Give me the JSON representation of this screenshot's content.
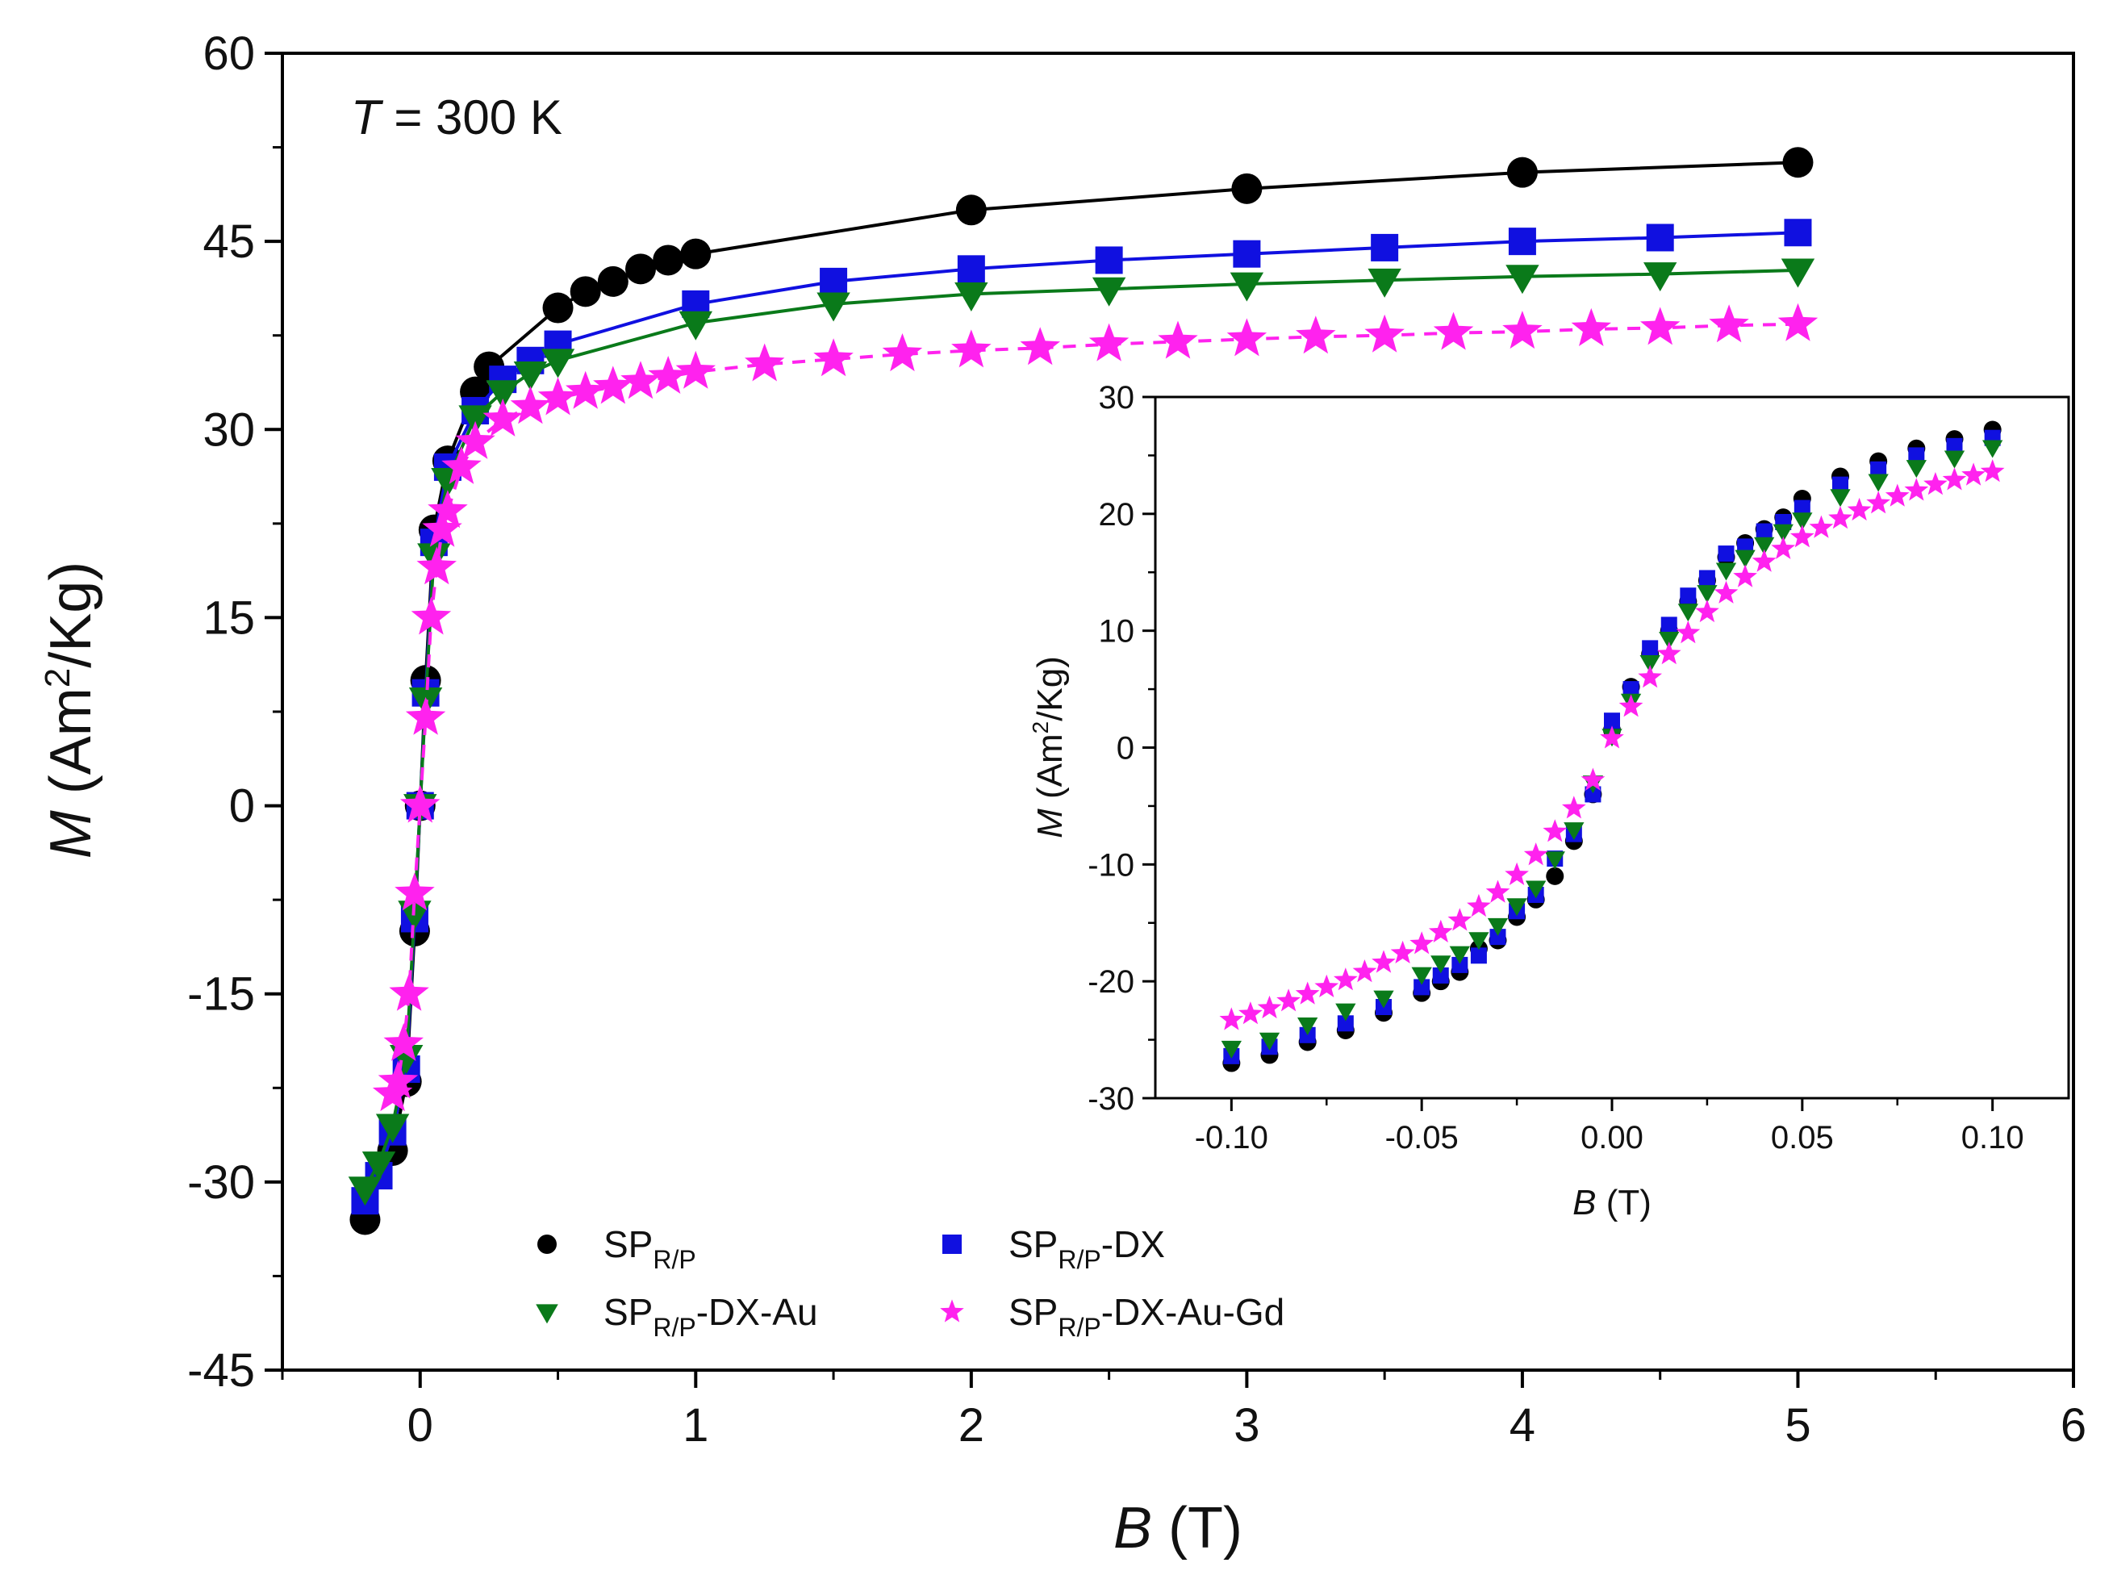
{
  "chart_data": [
    {
      "type": "line",
      "name": "main",
      "xlabel": "B",
      "xunit": "(T)",
      "ylabel": "M",
      "yunit_before_sup": "(Am",
      "yunit_sup": "2",
      "yunit_after_sup": "/Kg)",
      "xlim": [
        -0.5,
        6
      ],
      "ylim": [
        -45,
        60
      ],
      "xticks": [
        0,
        1,
        2,
        3,
        4,
        5,
        6
      ],
      "yticks": [
        -45,
        -30,
        -15,
        0,
        15,
        30,
        45,
        60
      ],
      "annotation": {
        "italic": "T",
        "rest": " = 300 K"
      },
      "grid": false,
      "legend_position": "bottom-center",
      "series": [
        {
          "name": "SP_R/P",
          "color": "#000000",
          "marker": "circle",
          "line": "solid",
          "x": [
            -0.2,
            -0.1,
            -0.05,
            -0.02,
            0,
            0.02,
            0.05,
            0.1,
            0.2,
            0.25,
            0.5,
            0.6,
            0.7,
            0.8,
            0.9,
            1.0,
            2.0,
            3.0,
            4.0,
            5.0
          ],
          "y": [
            -33,
            -27.5,
            -22,
            -10,
            0,
            10,
            22,
            27.5,
            33,
            35,
            39.7,
            41,
            41.8,
            42.8,
            43.5,
            44,
            47.5,
            49.2,
            50.5,
            51.3
          ]
        },
        {
          "name": "SP_R/P-DX",
          "color": "#1010e0",
          "marker": "square",
          "line": "solid",
          "x": [
            -0.2,
            -0.15,
            -0.1,
            -0.05,
            -0.02,
            0,
            0.02,
            0.05,
            0.1,
            0.2,
            0.3,
            0.4,
            0.5,
            1.0,
            1.5,
            2.0,
            2.5,
            3.0,
            3.5,
            4.0,
            4.5,
            5.0
          ],
          "y": [
            -31.5,
            -29.5,
            -26,
            -21,
            -9,
            0,
            9,
            21,
            27,
            31.5,
            34,
            35.5,
            36.8,
            40,
            41.8,
            42.8,
            43.5,
            44,
            44.5,
            45,
            45.3,
            45.7
          ]
        },
        {
          "name": "SP_R/P-DX-Au",
          "color": "#0a7a1a",
          "marker": "triangle-down",
          "line": "solid",
          "x": [
            -0.2,
            -0.15,
            -0.1,
            -0.05,
            -0.02,
            0,
            0.02,
            0.05,
            0.1,
            0.2,
            0.3,
            0.4,
            0.5,
            1.0,
            1.5,
            2.0,
            2.5,
            3.0,
            3.5,
            4.0,
            4.5,
            5.0
          ],
          "y": [
            -30.5,
            -28.5,
            -25.5,
            -20,
            -8.5,
            0,
            8.5,
            20,
            26,
            31,
            33,
            34.5,
            35.5,
            38.5,
            40,
            40.8,
            41.2,
            41.6,
            41.9,
            42.2,
            42.4,
            42.7
          ]
        },
        {
          "name": "SP_R/P-DX-Au-Gd",
          "color": "#ff22ee",
          "marker": "star",
          "line": "dashed",
          "x": [
            -0.1,
            -0.08,
            -0.06,
            -0.04,
            -0.02,
            0,
            0.02,
            0.04,
            0.06,
            0.08,
            0.1,
            0.15,
            0.2,
            0.3,
            0.4,
            0.5,
            0.6,
            0.7,
            0.8,
            0.9,
            1.0,
            1.25,
            1.5,
            1.75,
            2.0,
            2.25,
            2.5,
            2.75,
            3.0,
            3.25,
            3.5,
            3.75,
            4.0,
            4.25,
            4.5,
            4.75,
            5.0
          ],
          "y": [
            -23,
            -22,
            -19,
            -15,
            -7,
            0,
            7,
            15,
            19,
            22,
            23.5,
            27,
            29,
            30.8,
            31.8,
            32.5,
            33,
            33.4,
            33.8,
            34.2,
            34.6,
            35.2,
            35.6,
            36,
            36.3,
            36.5,
            36.8,
            37,
            37.2,
            37.4,
            37.5,
            37.7,
            37.8,
            38,
            38.1,
            38.3,
            38.4
          ]
        }
      ]
    },
    {
      "type": "scatter",
      "name": "inset",
      "xlabel": "B",
      "xunit": "(T)",
      "ylabel": "M",
      "yunit_before_sup": "(Am",
      "yunit_sup": "2",
      "yunit_after_sup": "/Kg)",
      "xlim": [
        -0.12,
        0.12
      ],
      "ylim": [
        -30,
        30
      ],
      "xticks": [
        -0.1,
        -0.05,
        0.0,
        0.05,
        0.1
      ],
      "xtick_labels": [
        "-0.10",
        "-0.05",
        "0.00",
        "0.05",
        "0.10"
      ],
      "yticks": [
        -30,
        -20,
        -10,
        0,
        10,
        20,
        30
      ],
      "grid": false,
      "series": [
        {
          "name": "SP_R/P",
          "color": "#000000",
          "marker": "circle",
          "x": [
            -0.1,
            -0.09,
            -0.08,
            -0.07,
            -0.06,
            -0.05,
            -0.045,
            -0.04,
            -0.035,
            -0.03,
            -0.025,
            -0.02,
            -0.015,
            -0.01,
            -0.005,
            0,
            0.005,
            0.01,
            0.015,
            0.02,
            0.025,
            0.03,
            0.035,
            0.04,
            0.045,
            0.05,
            0.06,
            0.07,
            0.08,
            0.09,
            0.1
          ],
          "y": [
            -27,
            -26.3,
            -25.2,
            -24.2,
            -22.7,
            -21,
            -20,
            -19.2,
            -17.2,
            -16.5,
            -14.5,
            -13,
            -11,
            -8,
            -4,
            1.5,
            5.2,
            8,
            10,
            12.5,
            14.3,
            16.3,
            17.5,
            18.7,
            19.7,
            21.3,
            23.2,
            24.5,
            25.6,
            26.4,
            27.2
          ]
        },
        {
          "name": "SP_R/P-DX",
          "color": "#1010e0",
          "marker": "square",
          "x": [
            -0.1,
            -0.09,
            -0.08,
            -0.07,
            -0.06,
            -0.05,
            -0.045,
            -0.04,
            -0.035,
            -0.03,
            -0.025,
            -0.02,
            -0.015,
            -0.01,
            -0.005,
            0,
            0.005,
            0.01,
            0.015,
            0.02,
            0.025,
            0.03,
            0.035,
            0.04,
            0.045,
            0.05,
            0.06,
            0.07,
            0.08,
            0.09,
            0.1
          ],
          "y": [
            -26.4,
            -25.6,
            -24.6,
            -23.6,
            -22.2,
            -20.5,
            -19.5,
            -18.6,
            -17.8,
            -16.2,
            -14,
            -12.6,
            -9.5,
            -7.4,
            -4,
            2.3,
            5,
            8.5,
            10.5,
            13,
            14.5,
            16.6,
            17.2,
            18.5,
            19.3,
            20.5,
            22.5,
            23.8,
            25,
            25.8,
            26.5
          ]
        },
        {
          "name": "SP_R/P-DX-Au",
          "color": "#0a7a1a",
          "marker": "triangle-down",
          "x": [
            -0.1,
            -0.09,
            -0.08,
            -0.07,
            -0.06,
            -0.05,
            -0.045,
            -0.04,
            -0.035,
            -0.03,
            -0.025,
            -0.02,
            -0.015,
            -0.01,
            -0.005,
            0,
            0.005,
            0.01,
            0.015,
            0.02,
            0.025,
            0.03,
            0.035,
            0.04,
            0.045,
            0.05,
            0.06,
            0.07,
            0.08,
            0.09,
            0.1
          ],
          "y": [
            -25.7,
            -25,
            -23.7,
            -22.5,
            -21.4,
            -19.4,
            -18.4,
            -17.6,
            -16.4,
            -15.2,
            -13.5,
            -12,
            -9.5,
            -7,
            -3,
            1,
            4,
            7.3,
            9.3,
            11.7,
            13.3,
            15.2,
            16.3,
            17.4,
            18.5,
            19.5,
            21.5,
            22.8,
            24,
            24.8,
            25.7
          ]
        },
        {
          "name": "SP_R/P-DX-Au-Gd",
          "color": "#ff22ee",
          "marker": "star",
          "x": [
            -0.1,
            -0.095,
            -0.09,
            -0.085,
            -0.08,
            -0.075,
            -0.07,
            -0.065,
            -0.06,
            -0.055,
            -0.05,
            -0.045,
            -0.04,
            -0.035,
            -0.03,
            -0.025,
            -0.02,
            -0.015,
            -0.01,
            -0.005,
            0,
            0.005,
            0.01,
            0.015,
            0.02,
            0.025,
            0.03,
            0.035,
            0.04,
            0.045,
            0.05,
            0.055,
            0.06,
            0.065,
            0.07,
            0.075,
            0.08,
            0.085,
            0.09,
            0.095,
            0.1
          ],
          "y": [
            -23.3,
            -22.8,
            -22.3,
            -21.7,
            -21.1,
            -20.5,
            -19.9,
            -19.2,
            -18.4,
            -17.6,
            -16.8,
            -15.8,
            -14.8,
            -13.6,
            -12.4,
            -10.9,
            -9.2,
            -7.2,
            -5.2,
            -2.8,
            0.8,
            3.5,
            6,
            8,
            9.8,
            11.6,
            13.2,
            14.6,
            15.9,
            17,
            18,
            18.8,
            19.6,
            20.3,
            20.9,
            21.5,
            22,
            22.5,
            22.9,
            23.3,
            23.6
          ]
        }
      ]
    }
  ],
  "legend": [
    {
      "base": "SP",
      "sub": "R/P",
      "suffix": "",
      "color": "#000000",
      "marker": "circle"
    },
    {
      "base": "SP",
      "sub": "R/P",
      "suffix": "-DX",
      "color": "#1010e0",
      "marker": "square"
    },
    {
      "base": "SP",
      "sub": "R/P",
      "suffix": "-DX-Au",
      "color": "#0a7a1a",
      "marker": "triangle-down"
    },
    {
      "base": "SP",
      "sub": "R/P",
      "suffix": "-DX-Au-Gd",
      "color": "#ff22ee",
      "marker": "star"
    }
  ]
}
